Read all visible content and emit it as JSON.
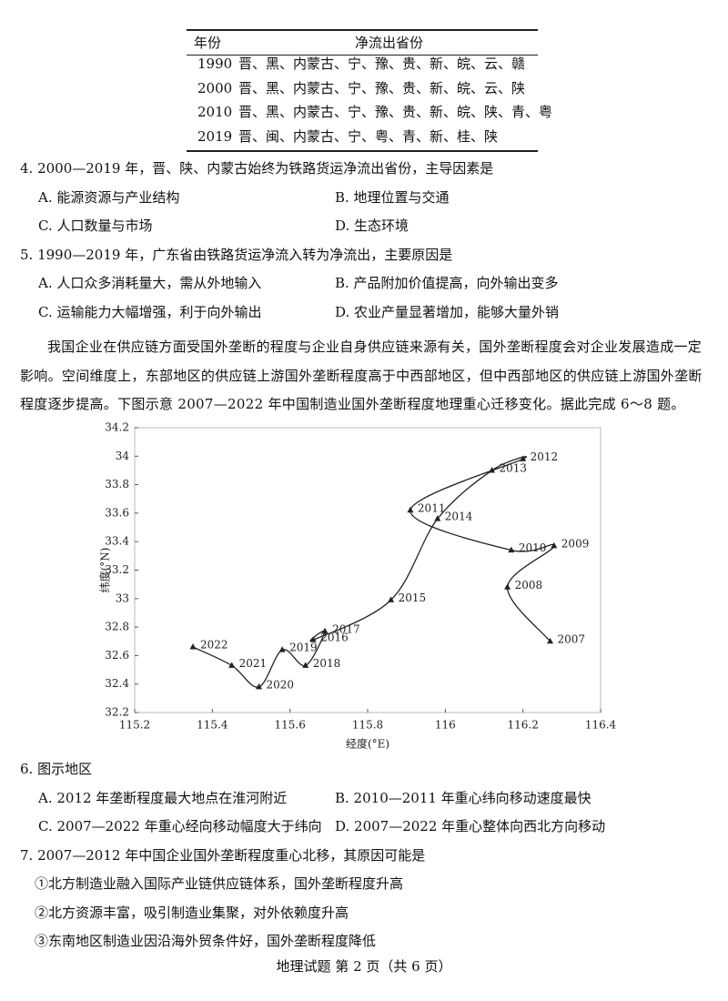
{
  "table": {
    "header": [
      "年份",
      "净流出省份"
    ],
    "rows": [
      [
        "1990",
        "晋、黑、内蒙古、宁、豫、贵、新、皖、云、赣"
      ],
      [
        "2000",
        "晋、黑、内蒙古、宁、豫、贵、新、皖、云、陕"
      ],
      [
        "2010",
        "晋、黑、内蒙古、宁、豫、贵、新、皖、陕、青、粤"
      ],
      [
        "2019",
        "晋、闽、内蒙古、宁、粤、青、新、桂、陕"
      ]
    ]
  },
  "questions_before": [
    {
      "stem": "4. 2000—2019 年，晋、陕、内蒙古始终为铁路货运净流出省份，主导因素是",
      "options": [
        "A. 能源资源与产业结构",
        "B. 地理位置与交通",
        "C. 人口数量与市场",
        "D. 生态环境"
      ]
    },
    {
      "stem": "5. 1990—2019 年，广东省由铁路货运净流入转为净流出，主要原因是",
      "options": [
        "A. 人口众多消耗量大，需从外地输入",
        "B. 产品附加价值提高，向外输出变多",
        "C. 运输能力大幅增强，利于向外输出",
        "D. 农业产量显著增加，能够大量外销"
      ]
    }
  ],
  "passage": "我国企业在供应链方面受国外垄断的程度与企业自身供应链来源有关，国外垄断程度会对企业发展造成一定影响。空间维度上，东部地区的供应链上游国外垄断程度高于中西部地区，但中西部地区的供应链上游国外垄断程度逐步提高。下图示意 2007—2022 年中国制造业国外垄断程度地理重心迁移变化。据此完成 6～8 题。",
  "chart_data": {
    "type": "line",
    "xlabel": "经度(°E)",
    "ylabel": "纬度(°N)",
    "point_labels": [
      "2007",
      "2008",
      "2009",
      "2010",
      "2011",
      "2012",
      "2013",
      "2014",
      "2015",
      "2016",
      "2017",
      "2018",
      "2019",
      "2020",
      "2021",
      "2022"
    ],
    "x": [
      116.27,
      116.16,
      116.28,
      116.17,
      115.91,
      116.2,
      116.12,
      115.98,
      115.86,
      115.66,
      115.69,
      115.64,
      115.58,
      115.52,
      115.45,
      115.35
    ],
    "y": [
      32.7,
      33.08,
      33.37,
      33.34,
      33.62,
      33.98,
      33.9,
      33.56,
      32.99,
      32.71,
      32.77,
      32.53,
      32.64,
      32.38,
      32.53,
      32.66
    ],
    "xlim": [
      115.2,
      116.4
    ],
    "xticks": [
      115.2,
      115.4,
      115.6,
      115.8,
      116,
      116.2,
      116.4
    ],
    "ylim": [
      32.2,
      34.2
    ],
    "yticks": [
      32.2,
      32.4,
      32.6,
      32.8,
      33,
      33.2,
      33.4,
      33.6,
      33.8,
      34,
      34.2
    ],
    "color": "#222222"
  },
  "questions_after": [
    {
      "stem": "6. 图示地区",
      "options": [
        "A. 2012 年垄断程度最大地点在淮河附近",
        "B. 2010—2011 年重心纬向移动速度最快",
        "C. 2007—2022 年重心经向移动幅度大于纬向",
        "D. 2007—2022 年重心整体向西北方向移动"
      ]
    },
    {
      "stem": "7. 2007—2012 年中国企业国外垄断程度重心北移，其原因可能是",
      "items": [
        "①北方制造业融入国际产业链供应链体系，国外垄断程度升高",
        "②北方资源丰富，吸引制造业集聚，对外依赖度升高",
        "③东南地区制造业因沿海外贸条件好，国外垄断程度降低"
      ]
    }
  ],
  "footer": "地理试题 第 2 页（共 6 页）"
}
